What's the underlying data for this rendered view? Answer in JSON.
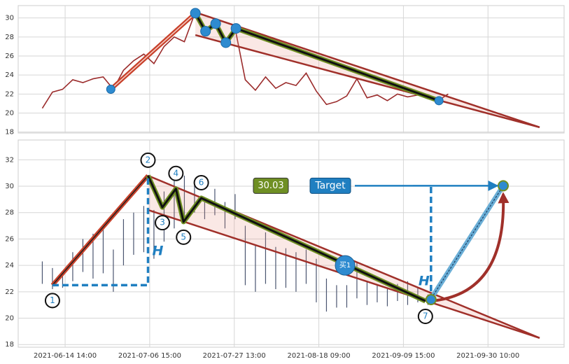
{
  "chart_data": [
    {
      "type": "line",
      "color": "#9b2c2c",
      "x": [
        -27,
        -15,
        -3,
        9,
        21,
        33,
        45,
        57,
        69,
        81,
        93,
        105,
        117,
        129,
        141,
        153,
        165,
        177,
        189,
        201,
        213,
        225,
        237,
        249,
        261,
        273,
        285,
        297,
        309,
        321,
        333,
        345,
        357,
        369,
        381,
        393,
        405,
        417,
        429,
        441,
        453
      ],
      "values": [
        20.5,
        22.2,
        22.5,
        23.5,
        23.2,
        23.6,
        23.8,
        22.5,
        24.5,
        25.5,
        26.2,
        25.2,
        27.0,
        28.0,
        27.5,
        30.4,
        28.6,
        29.4,
        27.4,
        28.9,
        23.5,
        22.4,
        23.8,
        22.6,
        23.2,
        22.9,
        24.2,
        22.3,
        20.9,
        21.2,
        21.8,
        23.6,
        21.6,
        21.9,
        21.3,
        22.0,
        21.7,
        21.9,
        21.5,
        21.3,
        22.0
      ],
      "pattern_x": [
        54,
        154,
        166,
        178,
        190,
        202,
        442
      ],
      "pattern_y": [
        22.5,
        30.5,
        28.6,
        29.4,
        27.4,
        28.9,
        21.3
      ],
      "trend_lines": [
        {
          "x": [
            154,
            561
          ],
          "y": [
            30.6,
            18.5
          ]
        },
        {
          "x": [
            154,
            561
          ],
          "y": [
            28.2,
            18.5
          ]
        }
      ],
      "xlim": [
        -55.5,
        590
      ],
      "ylim": [
        17.9,
        31.3
      ],
      "yticks": [
        18,
        20,
        22,
        24,
        26,
        28,
        30
      ],
      "grid": true
    },
    {
      "type": "ohlc",
      "color": "#4a5570",
      "x": [
        -27,
        -15,
        -3,
        9,
        21,
        33,
        45,
        57,
        69,
        81,
        93,
        105,
        117,
        129,
        141,
        153,
        165,
        177,
        189,
        201,
        213,
        225,
        237,
        249,
        261,
        273,
        285,
        297,
        309,
        321,
        333,
        345,
        357,
        369,
        381,
        393,
        405,
        417,
        429
      ],
      "high": [
        24.3,
        23.8,
        23.5,
        25.0,
        26.0,
        26.4,
        26.8,
        25.2,
        27.5,
        28.0,
        28.5,
        28.2,
        29.6,
        30.5,
        30.8,
        30.3,
        29.0,
        29.8,
        28.8,
        29.4,
        27.0,
        25.5,
        26.5,
        25.4,
        25.3,
        25.0,
        25.2,
        24.5,
        23.0,
        22.5,
        22.5,
        24.3,
        22.8,
        22.5,
        22.2,
        22.6,
        22.8,
        22.3,
        21.8
      ],
      "low": [
        22.6,
        22.2,
        22.3,
        22.8,
        23.5,
        23.0,
        23.4,
        22.0,
        24.0,
        24.8,
        25.0,
        24.5,
        25.8,
        26.8,
        27.5,
        28.0,
        27.5,
        27.8,
        26.8,
        27.5,
        22.5,
        22.0,
        22.6,
        22.2,
        22.3,
        22.0,
        22.6,
        21.2,
        20.5,
        20.8,
        20.8,
        21.5,
        21.0,
        21.2,
        20.9,
        21.3,
        21.0,
        21.2,
        21.0
      ],
      "pattern_x": [
        -15,
        98,
        115,
        131,
        140,
        161,
        426
      ],
      "pattern_y": [
        22.5,
        30.8,
        28.4,
        29.8,
        27.3,
        29.1,
        21.3
      ],
      "pattern_labels": [
        "1",
        "2",
        "3",
        "4",
        "5",
        "6",
        "7"
      ],
      "trend_lines": [
        {
          "x": [
            98,
            561
          ],
          "y": [
            30.8,
            18.5
          ]
        },
        {
          "x": [
            98,
            561
          ],
          "y": [
            28.2,
            18.5
          ]
        }
      ],
      "height_label": "H",
      "buy_label": "买1",
      "buy_x": 331,
      "buy_y": 24.0,
      "target_text": "Target",
      "target": 30.03,
      "target_x": 518,
      "xlim": [
        -55.5,
        590
      ],
      "ylim": [
        17.8,
        33.5
      ],
      "yticks": [
        18,
        20,
        22,
        24,
        26,
        28,
        30,
        32
      ],
      "xticks": [
        {
          "value": 0,
          "label": "2021-06-14 14:00"
        },
        {
          "value": 100,
          "label": "2021-07-06 15:00"
        },
        {
          "value": 200,
          "label": "2021-07-27 13:00"
        },
        {
          "value": 300,
          "label": "2021-08-18 09:00"
        },
        {
          "value": 400,
          "label": "2021-09-09 15:00"
        },
        {
          "value": 500,
          "label": "2021-09-30 10:00"
        }
      ],
      "grid": true
    }
  ]
}
